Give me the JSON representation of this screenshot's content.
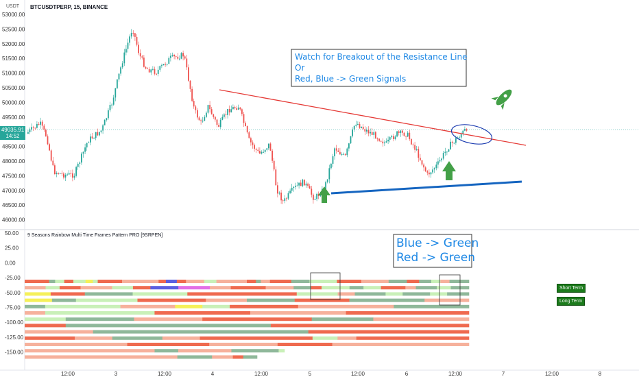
{
  "header": {
    "symbol": "BTCUSDTPERP, 15, BINANCE",
    "currency": "USDT"
  },
  "last_price": {
    "value": "49035.91",
    "countdown": "14:52"
  },
  "price_axis": [
    "53000.00",
    "52500.00",
    "52000.00",
    "51500.00",
    "51000.00",
    "50500.00",
    "50000.00",
    "49500.00",
    "49000.00",
    "48500.00",
    "48000.00",
    "47500.00",
    "47000.00",
    "46500.00",
    "46000.00"
  ],
  "indicator": {
    "title": "9 Seasons Rainbow Multi Time Frames Pattern PRO [9SRPEN]",
    "axis": [
      "50.00",
      "25.00",
      "0.00",
      "-25.00",
      "-50.00",
      "-75.00",
      "-100.00",
      "-125.00",
      "-150.00"
    ],
    "labels": {
      "short": "Short Term",
      "long": "Long Term"
    }
  },
  "time_axis": [
    "12:00",
    "3",
    "12:00",
    "4",
    "12:00",
    "5",
    "12:00",
    "6",
    "12:00",
    "7",
    "12:00",
    "8"
  ],
  "annotations": {
    "main_note": [
      "Watch for  Breakout of the Resistance Line",
      "Or",
      "Red, Blue -> Green Signals"
    ],
    "ind_note": [
      "Blue -> Green",
      "Red -> Green"
    ]
  },
  "colors": {
    "up": "#26a69a",
    "down": "#ef5350",
    "resistance": "#e53935",
    "support": "#1565c0",
    "ann_text": "#1e88e5",
    "arrow": "#43a047"
  }
}
